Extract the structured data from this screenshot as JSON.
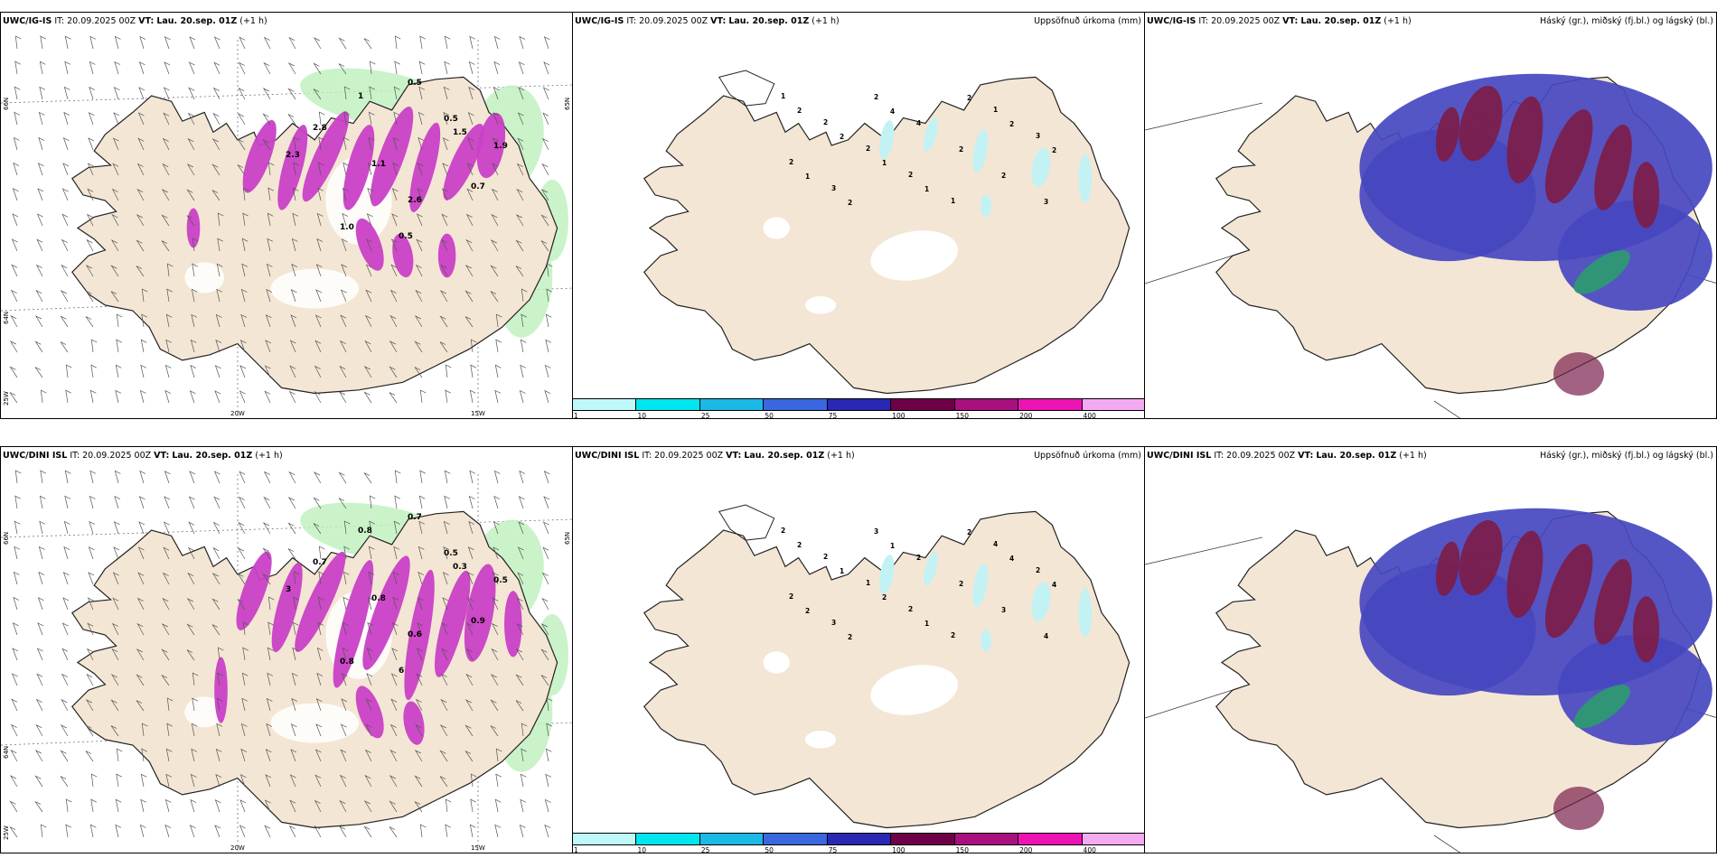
{
  "rows": [
    {
      "panels": [
        {
          "model": "UWC/IG-IS",
          "it_label": "IT:",
          "it_value": "20.09.2025 00Z",
          "vt_label": "VT:",
          "vt_value": "Lau. 20.sep. 01Z",
          "lead": "(+1 h)",
          "right_title": "",
          "lat_labels": [
            "66N",
            "64N",
            "65N"
          ],
          "lon_labels": [
            "25W",
            "20W",
            "15W"
          ],
          "values": [
            "0.5",
            "1",
            "0.5",
            "2.8",
            "1.1",
            "0.7",
            "2.6",
            "1.5",
            "1.0",
            "0.5",
            "2.3",
            "1.9"
          ]
        },
        {
          "model": "UWC/IG-IS",
          "it_label": "IT:",
          "it_value": "20.09.2025 00Z",
          "vt_label": "VT:",
          "vt_value": "Lau. 20.sep. 01Z",
          "lead": "(+1 h)",
          "right_title": "Uppsöfnuð úrkoma (mm)",
          "contour_labels": [
            "1",
            "2",
            "2",
            "2",
            "1",
            "1",
            "3",
            "2",
            "3",
            "2",
            "4",
            "2",
            "2",
            "3",
            "2",
            "2",
            "1",
            "1",
            "2",
            "2",
            "2",
            "1",
            "2",
            "4"
          ]
        },
        {
          "model": "UWC/IG-IS",
          "it_label": "IT:",
          "it_value": "20.09.2025 00Z",
          "vt_label": "VT:",
          "vt_value": "Lau. 20.sep. 01Z",
          "lead": "(+1 h)",
          "right_title": "Háský (gr.), miðský (fj.bl.) og lágský (bl.)"
        }
      ]
    },
    {
      "panels": [
        {
          "model": "UWC/DINI ISL",
          "it_label": "IT:",
          "it_value": "20.09.2025 00Z",
          "vt_label": "VT:",
          "vt_value": "Lau. 20.sep. 01Z",
          "lead": "(+1 h)",
          "right_title": "",
          "lat_labels": [
            "66N",
            "64N",
            "65N"
          ],
          "lon_labels": [
            "25W",
            "20W",
            "15W"
          ],
          "values": [
            "0.7",
            "0.8",
            "0.5",
            "0.7",
            "0.8",
            "0.9",
            "0.6",
            "0.3",
            "0.8",
            "6",
            "3",
            "0.5"
          ]
        },
        {
          "model": "UWC/DINI ISL",
          "it_label": "IT:",
          "it_value": "20.09.2025 00Z",
          "vt_label": "VT:",
          "vt_value": "Lau. 20.sep. 01Z",
          "lead": "(+1 h)",
          "right_title": "Uppsöfnuð úrkoma (mm)",
          "contour_labels": [
            "2",
            "2",
            "1",
            "2",
            "2",
            "4",
            "2",
            "2",
            "3",
            "3",
            "2",
            "2",
            "3",
            "4",
            "2",
            "1",
            "2",
            "1",
            "2",
            "4",
            "4",
            "2",
            "2",
            "1"
          ]
        },
        {
          "model": "UWC/DINI ISL",
          "it_label": "IT:",
          "it_value": "20.09.2025 00Z",
          "vt_label": "VT:",
          "vt_value": "Lau. 20.sep. 01Z",
          "lead": "(+1 h)",
          "right_title": "Háský (gr.), miðský (fj.bl.) og lágský (bl.)"
        }
      ]
    }
  ],
  "colorbar": {
    "ticks": [
      "1",
      "10",
      "25",
      "50",
      "75",
      "100",
      "150",
      "200",
      "400"
    ],
    "colors": [
      "#bff8f8",
      "#00e5ee",
      "#1ab9e6",
      "#3a66e0",
      "#2828b4",
      "#6e0048",
      "#a8107e",
      "#ee14b4",
      "#f3aaf0"
    ]
  },
  "palette": {
    "land": "#f4e6d4",
    "coast": "#222222",
    "precip_light": "#bdf0bd",
    "precip_magenta": "#c940c6",
    "accum_cyan": "#c2f2f4",
    "cloud_high": "#7b1f4c",
    "cloud_mid": "#4648c0",
    "cloud_low": "#2aa06a"
  }
}
